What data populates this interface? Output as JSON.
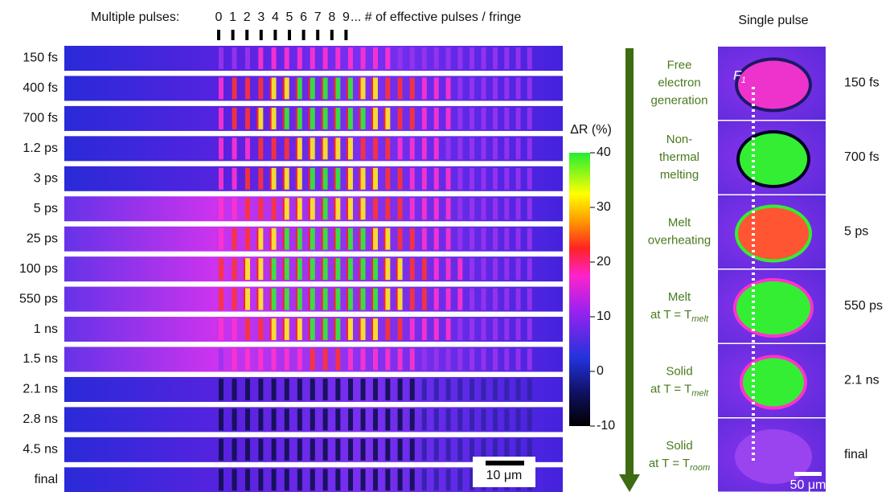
{
  "header": {
    "prefix": "Multiple pulses:",
    "pulse_numbers": [
      "0",
      "1",
      "2",
      "3",
      "4",
      "5",
      "6",
      "7",
      "8",
      "9"
    ],
    "suffix": "... # of effective pulses / fringe"
  },
  "left_rows": [
    "150 fs",
    "400 fs",
    "700 fs",
    "1.2 ps",
    "3 ps",
    "5 ps",
    "25 ps",
    "100 ps",
    "550 ps",
    "1 ns",
    "1.5 ns",
    "2.1 ns",
    "2.8 ns",
    "4.5 ns",
    "final"
  ],
  "left_scale_bar": "10 μm",
  "colorbar": {
    "label": "ΔR (%)",
    "range": [
      -10,
      40
    ],
    "ticks": [
      40,
      30,
      20,
      10,
      0,
      -10
    ]
  },
  "single_pulse": {
    "title": "Single pulse",
    "fluence_label": "F",
    "fluence_subscript": "1",
    "scale_bar": "50 μm",
    "stages": [
      {
        "lines": [
          "Free",
          "electron",
          "generation"
        ],
        "time": "150 fs"
      },
      {
        "lines": [
          "Non-",
          "thermal",
          "melting"
        ],
        "time": "700 fs"
      },
      {
        "lines": [
          "Melt",
          "overheating"
        ],
        "time": "5 ps"
      },
      {
        "lines": [
          "Melt"
        ],
        "condition": {
          "text": "at T = T",
          "subscript": "melt"
        },
        "time": "550 ps"
      },
      {
        "lines": [
          "Solid"
        ],
        "condition": {
          "text": "at T = T",
          "subscript": "melt"
        },
        "time": "2.1 ns"
      },
      {
        "lines": [
          "Solid"
        ],
        "condition": {
          "text": "at T = T",
          "subscript": "room"
        },
        "time": "final"
      }
    ]
  }
}
